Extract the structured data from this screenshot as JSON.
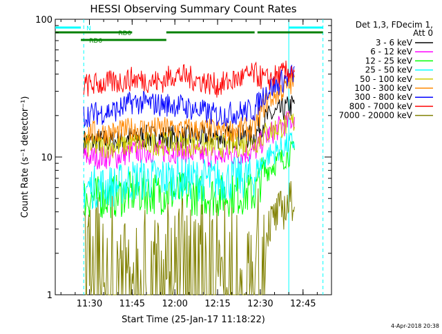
{
  "chart_data": {
    "type": "line",
    "title": "HESSI Observing Summary Count Rates",
    "xlabel": "Start Time (25-Jan-17 11:18:22)",
    "ylabel": "Count Rate (s⁻¹ detector⁻¹)",
    "ylog": true,
    "xlim": [
      "11:18",
      "12:55"
    ],
    "ylim": [
      1,
      100
    ],
    "x_ticks": [
      "11:30",
      "11:45",
      "12:00",
      "12:15",
      "12:30",
      "12:45"
    ],
    "y_ticks": [
      "1",
      "10",
      "100"
    ],
    "legend_title": [
      "Det 1,3, FDecim 1,",
      "Att 0"
    ],
    "legend_placement": "right",
    "data_start": "11:28",
    "data_end": "12:42",
    "series": [
      {
        "name": "3 - 6 keV",
        "color": "#000000",
        "x": [
          "11:28",
          "11:40",
          "11:45",
          "11:55",
          "12:00",
          "12:15",
          "12:28",
          "12:32",
          "12:42"
        ],
        "values": [
          13,
          13,
          14,
          14,
          14,
          14,
          14,
          19,
          24
        ]
      },
      {
        "name": "6 - 12 keV",
        "color": "#ff00ff",
        "x": [
          "11:28",
          "11:40",
          "11:45",
          "11:55",
          "12:00",
          "12:15",
          "12:28",
          "12:32",
          "12:42"
        ],
        "values": [
          10,
          10,
          11,
          11,
          11,
          10,
          11,
          14,
          19
        ]
      },
      {
        "name": "12 - 25 keV",
        "color": "#00ff00",
        "x": [
          "11:28",
          "11:40",
          "11:45",
          "11:55",
          "12:00",
          "12:15",
          "12:28",
          "12:32",
          "12:42"
        ],
        "values": [
          5,
          5.2,
          5.5,
          5.5,
          5.5,
          5.2,
          5.5,
          8,
          11
        ]
      },
      {
        "name": "25 - 50 keV",
        "color": "#00ffff",
        "x": [
          "11:28",
          "11:40",
          "11:45",
          "11:55",
          "12:00",
          "12:15",
          "12:28",
          "12:32",
          "12:42"
        ],
        "values": [
          6,
          6.2,
          6.8,
          7,
          7,
          6.8,
          7.2,
          10,
          13
        ]
      },
      {
        "name": "50 - 100 keV",
        "color": "#cccc00",
        "x": [
          "11:28",
          "11:40",
          "11:45",
          "11:55",
          "12:00",
          "12:15",
          "12:28",
          "12:32",
          "12:42"
        ],
        "values": [
          12,
          12,
          12.5,
          12.5,
          12.5,
          12,
          12.5,
          15,
          18
        ]
      },
      {
        "name": "100 - 300 keV",
        "color": "#ff8800",
        "x": [
          "11:28",
          "11:40",
          "11:45",
          "11:55",
          "12:00",
          "12:15",
          "12:28",
          "12:32",
          "12:42"
        ],
        "values": [
          15,
          15,
          16,
          16,
          16,
          15.5,
          16,
          25,
          35
        ]
      },
      {
        "name": "300 - 800 keV",
        "color": "#0000ff",
        "x": [
          "11:28",
          "11:40",
          "11:45",
          "11:55",
          "12:00",
          "12:15",
          "12:28",
          "12:32",
          "12:42"
        ],
        "values": [
          20,
          22,
          25,
          24,
          24,
          20,
          22,
          30,
          40
        ]
      },
      {
        "name": "800 - 7000 keV",
        "color": "#ff0000",
        "x": [
          "11:28",
          "11:40",
          "11:45",
          "11:55",
          "12:00",
          "12:15",
          "12:28",
          "12:32",
          "12:42"
        ],
        "values": [
          33,
          35,
          37,
          35,
          40,
          33,
          40,
          36,
          43
        ]
      },
      {
        "name": "7000 - 20000 keV",
        "color": "#808000",
        "x": [
          "11:28",
          "11:40",
          "11:45",
          "11:55",
          "12:00",
          "12:15",
          "12:28",
          "12:32",
          "12:42"
        ],
        "values": [
          1.8,
          1.9,
          1.9,
          1.8,
          1.9,
          1.8,
          1.9,
          3,
          5
        ]
      }
    ],
    "annotations": [
      {
        "label": "N",
        "color": "#00ffff",
        "segments": [
          [
            "11:18",
            "11:27"
          ],
          [
            "12:40",
            "12:52"
          ]
        ],
        "level": 1
      },
      {
        "label": "RD0",
        "color": "#008000",
        "segments": [
          [
            "11:18",
            "11:45"
          ],
          [
            "11:57",
            "12:28"
          ],
          [
            "12:29",
            "12:52"
          ]
        ],
        "level": 2
      },
      {
        "label": "RD6",
        "color": "#008000",
        "segments": [
          [
            "11:27",
            "11:57"
          ]
        ],
        "level": 3
      }
    ],
    "vlines": [
      {
        "time": "11:28",
        "color": "#00ffff",
        "style": "dashed"
      },
      {
        "time": "12:40",
        "color": "#00ffff",
        "style": "solid"
      },
      {
        "time": "12:52",
        "color": "#00ffff",
        "style": "dashed"
      }
    ]
  },
  "footer_timestamp": "4-Apr-2018 20:38"
}
